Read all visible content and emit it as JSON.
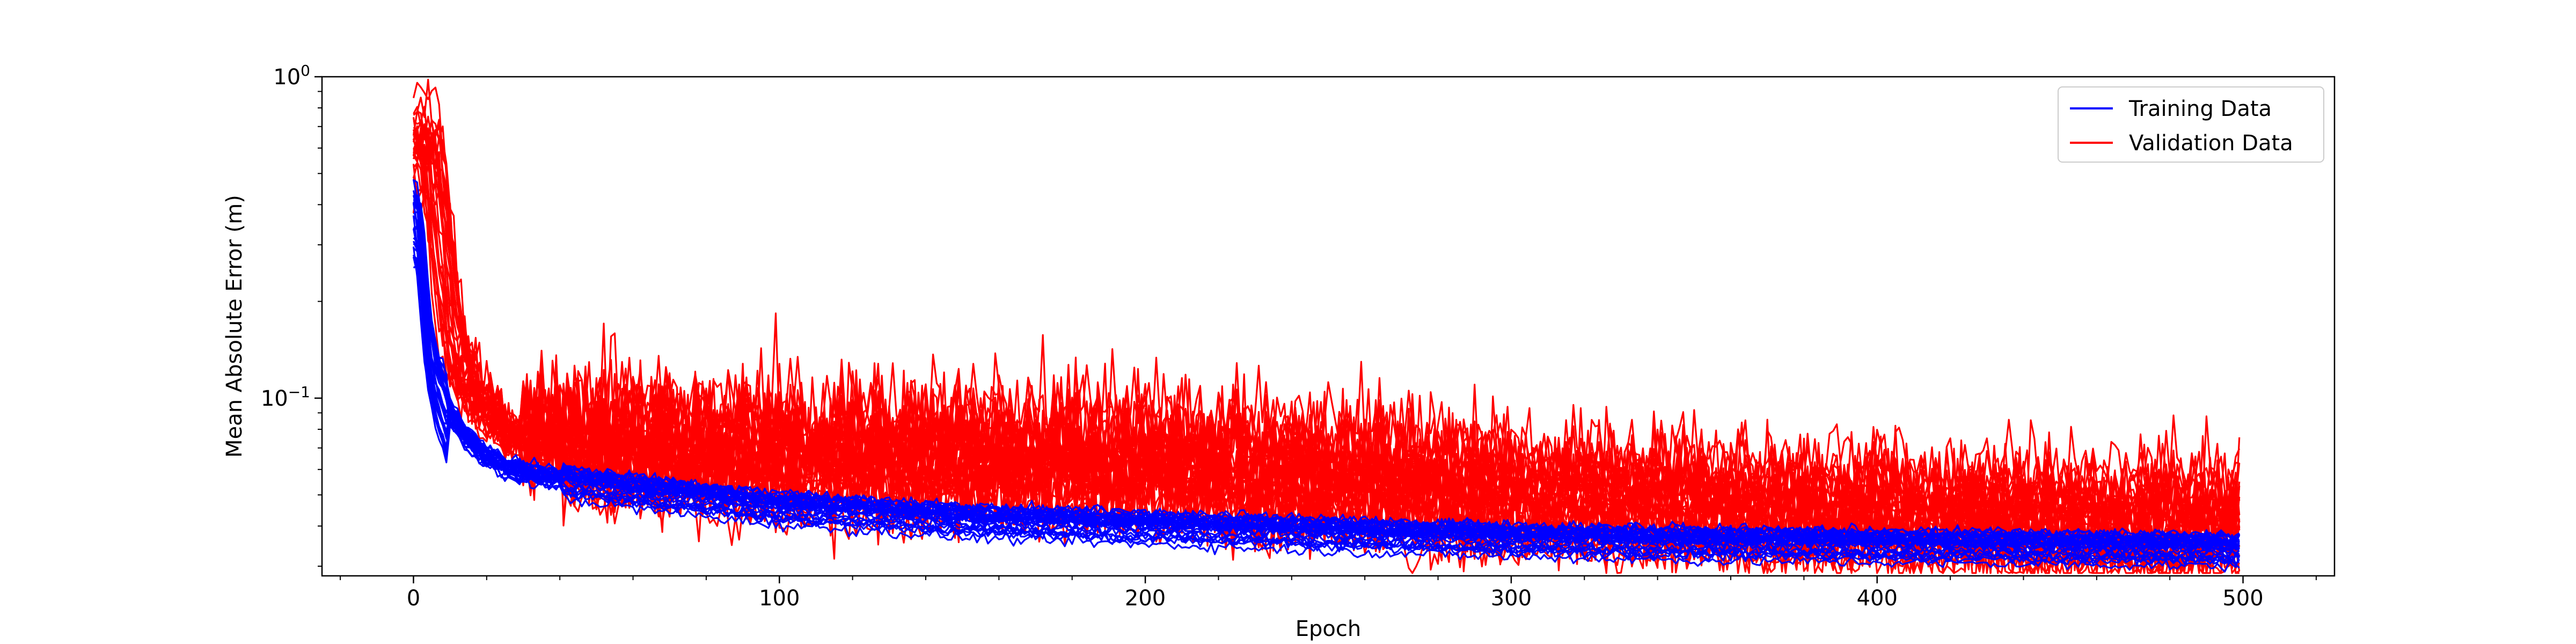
{
  "chart_data": {
    "type": "line",
    "title": "",
    "xlabel": "Epoch",
    "ylabel": "Mean Absolute Error (m)",
    "xlim": [
      -25,
      525
    ],
    "ylim": [
      0.028,
      1.0
    ],
    "yscale": "log",
    "xticks": [
      0,
      100,
      200,
      300,
      400,
      500
    ],
    "xtick_labels": [
      "0",
      "100",
      "200",
      "300",
      "400",
      "500"
    ],
    "yticks": [
      0.1,
      1.0
    ],
    "ytick_labels": [
      {
        "base": "10",
        "exp": "−1"
      },
      {
        "base": "10",
        "exp": "0"
      }
    ],
    "grid": false,
    "legend": {
      "location": "top-right",
      "entries": [
        "Training Data",
        "Validation Data"
      ]
    },
    "colors": {
      "training": "#0000ff",
      "validation": "#ff0000"
    },
    "series_groups": [
      {
        "name": "Training Data",
        "color": "#0000ff",
        "runs": 30,
        "epochs": 500,
        "profile": {
          "x": [
            0,
            1,
            2,
            3,
            5,
            8,
            12,
            18,
            25,
            40,
            60,
            100,
            150,
            200,
            250,
            300,
            350,
            400,
            450,
            499
          ],
          "y": [
            0.38,
            0.3,
            0.22,
            0.16,
            0.12,
            0.095,
            0.08,
            0.068,
            0.062,
            0.057,
            0.053,
            0.047,
            0.043,
            0.041,
            0.039,
            0.0375,
            0.0365,
            0.036,
            0.0355,
            0.035
          ]
        }
      },
      {
        "name": "Validation Data",
        "color": "#ff0000",
        "runs": 30,
        "epochs": 500,
        "profile": {
          "x": [
            0,
            1,
            2,
            4,
            6,
            10,
            15,
            20,
            30,
            50,
            100,
            150,
            200,
            250,
            300,
            350,
            400,
            450,
            499
          ],
          "y": [
            0.6,
            0.55,
            0.4,
            0.25,
            0.16,
            0.11,
            0.09,
            0.08,
            0.074,
            0.07,
            0.066,
            0.065,
            0.062,
            0.056,
            0.05,
            0.047,
            0.044,
            0.042,
            0.041
          ]
        }
      }
    ]
  }
}
